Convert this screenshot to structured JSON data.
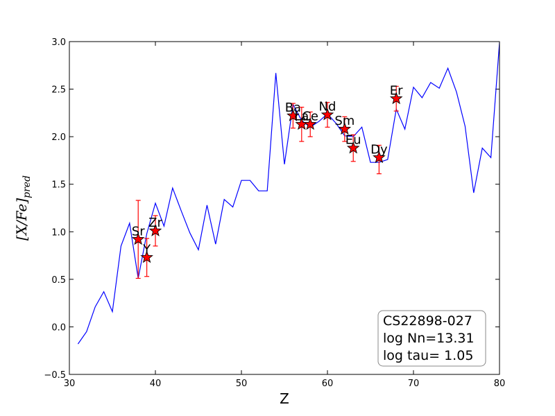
{
  "chart_data": {
    "type": "line",
    "xlabel": "Z",
    "ylabel_main": "[X/Fe]",
    "ylabel_sub": "pred",
    "xlim": [
      30,
      80
    ],
    "ylim": [
      -0.5,
      3.0
    ],
    "x_ticks": [
      30,
      40,
      50,
      60,
      70,
      80
    ],
    "x_tick_labels": [
      "30",
      "40",
      "50",
      "60",
      "70",
      "80"
    ],
    "y_ticks": [
      -0.5,
      0.0,
      0.5,
      1.0,
      1.5,
      2.0,
      2.5,
      3.0
    ],
    "y_tick_labels": [
      "−0.5",
      "0.0",
      "0.5",
      "1.0",
      "1.5",
      "2.0",
      "2.5",
      "3.0"
    ],
    "grid": false,
    "legend_position": "bottom-right",
    "legend_lines": [
      "CS22898-027",
      "log Nn=13.31",
      "log tau= 1.05"
    ],
    "colors": {
      "model_line": "#0000ff",
      "star_fill": "#ff0000",
      "star_edge": "#000000",
      "error_bar": "#ff0000"
    },
    "series": [
      {
        "type": "line",
        "x": [
          31,
          32,
          33,
          34,
          35,
          36,
          37,
          38,
          39,
          40,
          41,
          42,
          43,
          44,
          45,
          46,
          47,
          48,
          49,
          50,
          51,
          52,
          53,
          54,
          55,
          56,
          57,
          58,
          59,
          60,
          61,
          62,
          63,
          64,
          65,
          66,
          67,
          68,
          69,
          70,
          71,
          72,
          73,
          74,
          75,
          76,
          77,
          78,
          79,
          80
        ],
        "y": [
          -0.18,
          -0.05,
          0.21,
          0.37,
          0.16,
          0.85,
          1.09,
          0.51,
          0.98,
          1.3,
          1.06,
          1.46,
          1.22,
          0.99,
          0.81,
          1.28,
          0.87,
          1.34,
          1.26,
          1.54,
          1.54,
          1.43,
          1.43,
          2.67,
          1.71,
          2.34,
          2.17,
          2.1,
          2.16,
          2.24,
          2.14,
          2.01,
          2.0,
          2.1,
          1.73,
          1.73,
          1.76,
          2.29,
          2.08,
          2.52,
          2.41,
          2.57,
          2.51,
          2.72,
          2.47,
          2.11,
          1.41,
          1.88,
          1.78,
          2.99
        ]
      },
      {
        "type": "scatter",
        "points": [
          {
            "label": "Sr",
            "x": 38,
            "y": 0.92,
            "err_lo": 0.41,
            "err_hi": 0.41
          },
          {
            "label": "Y",
            "x": 39,
            "y": 0.73,
            "err_lo": 0.2,
            "err_hi": 0.2
          },
          {
            "label": "Zr",
            "x": 40,
            "y": 1.01,
            "err_lo": 0.16,
            "err_hi": 0.16
          },
          {
            "label": "Ba",
            "x": 56,
            "y": 2.22,
            "err_lo": 0.13,
            "err_hi": 0.13
          },
          {
            "label": "La",
            "x": 57,
            "y": 2.13,
            "err_lo": 0.18,
            "err_hi": 0.18
          },
          {
            "label": "Ce",
            "x": 58,
            "y": 2.13,
            "err_lo": 0.13,
            "err_hi": 0.13
          },
          {
            "label": "Nd",
            "x": 60,
            "y": 2.23,
            "err_lo": 0.13,
            "err_hi": 0.13
          },
          {
            "label": "Sm",
            "x": 62,
            "y": 2.08,
            "err_lo": 0.13,
            "err_hi": 0.13
          },
          {
            "label": "Eu",
            "x": 63,
            "y": 1.88,
            "err_lo": 0.14,
            "err_hi": 0.14
          },
          {
            "label": "Dy",
            "x": 66,
            "y": 1.78,
            "err_lo": 0.17,
            "err_hi": 0.13
          },
          {
            "label": "Er",
            "x": 68,
            "y": 2.4,
            "err_lo": 0.13,
            "err_hi": 0.13
          }
        ]
      }
    ]
  }
}
